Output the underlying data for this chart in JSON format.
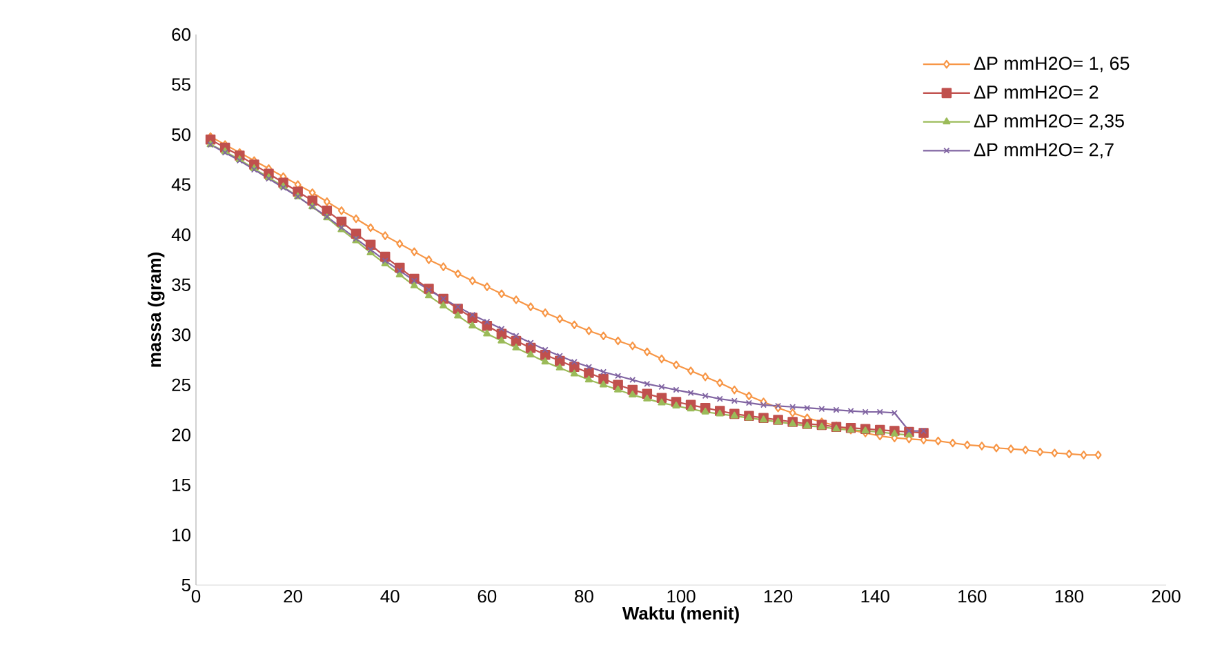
{
  "chart_data": {
    "type": "line",
    "xlabel": "Waktu (menit)",
    "ylabel": "massa (gram)",
    "xlim": [
      0,
      200
    ],
    "xticks": [
      0,
      20,
      40,
      60,
      80,
      100,
      120,
      140,
      160,
      180,
      200
    ],
    "ylim": [
      5,
      60
    ],
    "yticks": [
      5,
      10,
      15,
      20,
      25,
      30,
      35,
      40,
      45,
      50,
      55,
      60
    ],
    "grid": false,
    "legend": "top right",
    "series": [
      {
        "name": "ΔP mmH2O= 1, 65",
        "color": "#f79646",
        "marker": "diamond",
        "x": [
          3,
          6,
          9,
          12,
          15,
          18,
          21,
          24,
          27,
          30,
          33,
          36,
          39,
          42,
          45,
          48,
          51,
          54,
          57,
          60,
          63,
          66,
          69,
          72,
          75,
          78,
          81,
          84,
          87,
          90,
          93,
          96,
          99,
          102,
          105,
          108,
          111,
          114,
          117,
          120,
          123,
          126,
          129,
          132,
          135,
          138,
          141,
          144,
          147,
          150,
          153,
          156,
          159,
          162,
          165,
          168,
          171,
          174,
          177,
          180,
          183,
          186
        ],
        "values": [
          49.8,
          49.0,
          48.2,
          47.4,
          46.6,
          45.8,
          45.0,
          44.2,
          43.3,
          42.4,
          41.6,
          40.7,
          39.9,
          39.1,
          38.3,
          37.5,
          36.8,
          36.1,
          35.4,
          34.8,
          34.1,
          33.5,
          32.8,
          32.2,
          31.6,
          31.0,
          30.4,
          29.9,
          29.4,
          28.9,
          28.3,
          27.6,
          27.0,
          26.4,
          25.8,
          25.2,
          24.5,
          23.9,
          23.3,
          22.7,
          22.2,
          21.7,
          21.3,
          20.9,
          20.5,
          20.2,
          19.9,
          19.7,
          19.6,
          19.5,
          19.4,
          19.2,
          19.0,
          18.9,
          18.7,
          18.6,
          18.5,
          18.3,
          18.2,
          18.1,
          18.0,
          18.0
        ]
      },
      {
        "name": "ΔP mmH2O= 2",
        "color": "#c0504d",
        "marker": "square",
        "x": [
          3,
          6,
          9,
          12,
          15,
          18,
          21,
          24,
          27,
          30,
          33,
          36,
          39,
          42,
          45,
          48,
          51,
          54,
          57,
          60,
          63,
          66,
          69,
          72,
          75,
          78,
          81,
          84,
          87,
          90,
          93,
          96,
          99,
          102,
          105,
          108,
          111,
          114,
          117,
          120,
          123,
          126,
          129,
          132,
          135,
          138,
          141,
          144,
          147,
          150
        ],
        "values": [
          49.5,
          48.7,
          47.9,
          47.0,
          46.1,
          45.2,
          44.3,
          43.4,
          42.4,
          41.3,
          40.1,
          39.0,
          37.8,
          36.7,
          35.6,
          34.6,
          33.6,
          32.6,
          31.7,
          30.9,
          30.1,
          29.4,
          28.7,
          28.0,
          27.4,
          26.8,
          26.2,
          25.6,
          25.0,
          24.5,
          24.1,
          23.7,
          23.3,
          23.0,
          22.7,
          22.4,
          22.1,
          21.9,
          21.7,
          21.5,
          21.3,
          21.1,
          21.0,
          20.8,
          20.7,
          20.6,
          20.5,
          20.4,
          20.3,
          20.2
        ]
      },
      {
        "name": "ΔP mmH2O= 2,35",
        "color": "#9bbb59",
        "marker": "triangle",
        "x": [
          3,
          6,
          9,
          12,
          15,
          18,
          21,
          24,
          27,
          30,
          33,
          36,
          39,
          42,
          45,
          48,
          51,
          54,
          57,
          60,
          63,
          66,
          69,
          72,
          75,
          78,
          81,
          84,
          87,
          90,
          93,
          96,
          99,
          102,
          105,
          108,
          111,
          114,
          117,
          120,
          123,
          126,
          129,
          132,
          135,
          138,
          141,
          144,
          147
        ],
        "values": [
          49.0,
          48.3,
          47.5,
          46.6,
          45.7,
          44.8,
          43.8,
          42.8,
          41.7,
          40.5,
          39.4,
          38.2,
          37.1,
          36.0,
          34.9,
          33.9,
          32.9,
          31.9,
          30.9,
          30.1,
          29.4,
          28.7,
          28.0,
          27.3,
          26.7,
          26.1,
          25.5,
          25.0,
          24.5,
          24.0,
          23.6,
          23.2,
          22.9,
          22.6,
          22.3,
          22.1,
          21.9,
          21.7,
          21.5,
          21.3,
          21.1,
          20.9,
          20.8,
          20.6,
          20.5,
          20.4,
          20.3,
          20.1,
          20.0
        ]
      },
      {
        "name": "ΔP mmH2O= 2,7",
        "color": "#8064a2",
        "marker": "cross",
        "x": [
          3,
          6,
          9,
          12,
          15,
          18,
          21,
          24,
          27,
          30,
          33,
          36,
          39,
          42,
          45,
          48,
          51,
          54,
          57,
          60,
          63,
          66,
          69,
          72,
          75,
          78,
          81,
          84,
          87,
          90,
          93,
          96,
          99,
          102,
          105,
          108,
          111,
          114,
          117,
          120,
          123,
          126,
          129,
          132,
          135,
          138,
          141,
          144,
          147,
          150
        ],
        "values": [
          49.0,
          48.2,
          47.4,
          46.5,
          45.6,
          44.7,
          43.8,
          42.8,
          41.8,
          40.7,
          39.6,
          38.5,
          37.4,
          36.4,
          35.4,
          34.5,
          33.6,
          32.8,
          32.0,
          31.3,
          30.6,
          29.9,
          29.2,
          28.5,
          27.9,
          27.3,
          26.8,
          26.3,
          25.9,
          25.5,
          25.1,
          24.8,
          24.5,
          24.2,
          23.9,
          23.6,
          23.4,
          23.2,
          23.0,
          22.9,
          22.8,
          22.7,
          22.6,
          22.5,
          22.4,
          22.3,
          22.3,
          22.2,
          20.4,
          20.4
        ]
      }
    ]
  }
}
